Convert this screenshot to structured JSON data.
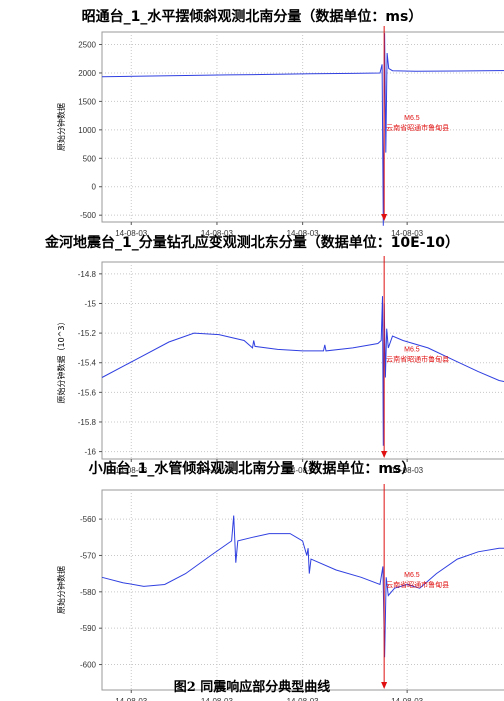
{
  "caption": "图2 同震响应部分典型曲线",
  "event": {
    "magnitude": "M6.5",
    "place": "云南省昭通市鲁甸县"
  },
  "chart_data": [
    {
      "type": "line",
      "title": "昭通台_1_水平摆倾斜观测北南分量（数据单位：ms）",
      "ylabel": "原始分钟数据",
      "yticks": [
        2500,
        2000,
        1500,
        1000,
        500,
        0,
        -500
      ],
      "ylim": [
        -620,
        2720
      ],
      "xlim": [
        0,
        100
      ],
      "xticks": [
        {
          "x": 7,
          "label": "14-08-03"
        },
        {
          "x": 27.5,
          "label": "14-08-03"
        },
        {
          "x": 48,
          "label": "14-08-03"
        },
        {
          "x": 73,
          "label": "14-08-03"
        }
      ],
      "grid": true,
      "event_x": 67.5,
      "event_label_y": 1100,
      "series": [
        {
          "color": "#3040e0",
          "points": [
            [
              0,
              1935
            ],
            [
              10,
              1945
            ],
            [
              20,
              1955
            ],
            [
              30,
              1965
            ],
            [
              40,
              1975
            ],
            [
              50,
              1985
            ],
            [
              60,
              1992
            ],
            [
              66.5,
              2000
            ],
            [
              67,
              2150
            ],
            [
              67.3,
              -700
            ],
            [
              67.6,
              2700
            ],
            [
              67.9,
              600
            ],
            [
              68.2,
              2350
            ],
            [
              68.6,
              2080
            ],
            [
              69.5,
              2040
            ],
            [
              75,
              2030
            ],
            [
              85,
              2035
            ],
            [
              100,
              2045
            ]
          ]
        }
      ]
    },
    {
      "type": "line",
      "title": "金河地震台_1_分量钻孔应变观测北东分量（数据单位：10E-10）",
      "ylabel": "原始分钟数据（10^3）",
      "yticks": [
        -14.8,
        -15.0,
        -15.2,
        -15.4,
        -15.6,
        -15.8,
        -16.0
      ],
      "ylim": [
        -16.05,
        -14.72
      ],
      "xlim": [
        0,
        100
      ],
      "xticks": [
        {
          "x": 7,
          "label": "14-08-03"
        },
        {
          "x": 27.5,
          "label": "14-08-03"
        },
        {
          "x": 48,
          "label": "14-08-03"
        },
        {
          "x": 73,
          "label": "14-08-03"
        }
      ],
      "grid": true,
      "event_x": 67.5,
      "event_label_y": -15.35,
      "series": [
        {
          "color": "#3040e0",
          "points": [
            [
              0,
              -15.5
            ],
            [
              8,
              -15.38
            ],
            [
              16,
              -15.26
            ],
            [
              22,
              -15.2
            ],
            [
              28,
              -15.21
            ],
            [
              34,
              -15.25
            ],
            [
              36,
              -15.3
            ],
            [
              36.3,
              -15.25
            ],
            [
              36.6,
              -15.29
            ],
            [
              42,
              -15.31
            ],
            [
              48,
              -15.32
            ],
            [
              53,
              -15.32
            ],
            [
              53.3,
              -15.28
            ],
            [
              53.6,
              -15.32
            ],
            [
              60,
              -15.3
            ],
            [
              66,
              -15.27
            ],
            [
              66.8,
              -15.25
            ],
            [
              67.1,
              -14.95
            ],
            [
              67.3,
              -15.96
            ],
            [
              67.5,
              -15.0
            ],
            [
              67.8,
              -15.5
            ],
            [
              68.1,
              -15.17
            ],
            [
              68.5,
              -15.3
            ],
            [
              69.5,
              -15.22
            ],
            [
              72,
              -15.25
            ],
            [
              78,
              -15.3
            ],
            [
              84,
              -15.38
            ],
            [
              90,
              -15.46
            ],
            [
              95,
              -15.52
            ],
            [
              100,
              -15.55
            ]
          ]
        }
      ]
    },
    {
      "type": "line",
      "title": "小庙台_1_水管倾斜观测北南分量（数据单位：ms）",
      "ylabel": "原始分钟数据",
      "yticks": [
        -560,
        -570,
        -580,
        -590,
        -600
      ],
      "ylim": [
        -607,
        -552
      ],
      "xlim": [
        0,
        100
      ],
      "xticks": [
        {
          "x": 7,
          "label": "14-08-03"
        },
        {
          "x": 27.5,
          "label": "14-08-03"
        },
        {
          "x": 48,
          "label": "14-08-03"
        },
        {
          "x": 73,
          "label": "14-08-03"
        }
      ],
      "grid": true,
      "event_x": 67.5,
      "event_label_y": -577,
      "series": [
        {
          "color": "#3040e0",
          "points": [
            [
              0,
              -576
            ],
            [
              5,
              -577.5
            ],
            [
              10,
              -578.5
            ],
            [
              15,
              -578
            ],
            [
              20,
              -575
            ],
            [
              26,
              -570
            ],
            [
              31,
              -566
            ],
            [
              31.5,
              -559
            ],
            [
              32,
              -572
            ],
            [
              32.5,
              -566
            ],
            [
              36,
              -565
            ],
            [
              40,
              -564
            ],
            [
              45,
              -564
            ],
            [
              48,
              -566
            ],
            [
              49,
              -570
            ],
            [
              49.3,
              -568
            ],
            [
              49.6,
              -575
            ],
            [
              50,
              -571
            ],
            [
              56,
              -574
            ],
            [
              62,
              -576
            ],
            [
              66.5,
              -578
            ],
            [
              67.2,
              -573
            ],
            [
              67.6,
              -598
            ],
            [
              68,
              -576
            ],
            [
              68.5,
              -581
            ],
            [
              70,
              -579
            ],
            [
              73,
              -578
            ],
            [
              76,
              -579
            ],
            [
              80,
              -575
            ],
            [
              85,
              -571
            ],
            [
              90,
              -569
            ],
            [
              95,
              -568
            ],
            [
              100,
              -568
            ]
          ]
        }
      ]
    }
  ]
}
